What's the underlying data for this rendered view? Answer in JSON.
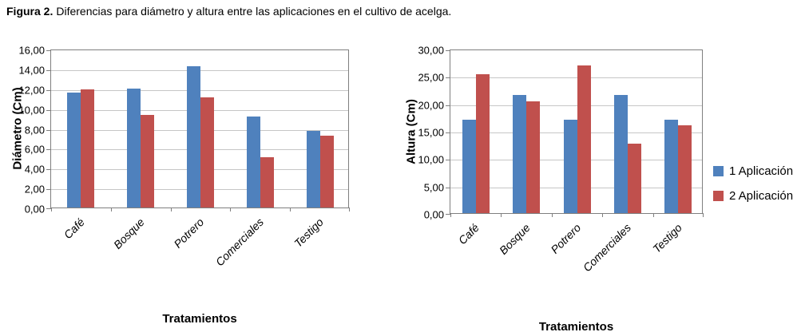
{
  "caption": {
    "label": "Figura 2.",
    "text": "Diferencias para diámetro y altura entre las aplicaciones en el cultivo de acelga."
  },
  "colors": {
    "series1": "#4F81BD",
    "series2": "#C0504D",
    "gridline": "#C6C6C6",
    "axis": "#7F7F7F"
  },
  "legend": {
    "position": "right",
    "items": [
      {
        "label": "1 Aplicación",
        "color": "#4F81BD"
      },
      {
        "label": "2 Aplicación",
        "color": "#C0504D"
      }
    ]
  },
  "chart_data": [
    {
      "type": "bar",
      "title": "",
      "ylabel": "Diámetro (Cm)",
      "xlabel": "Tratamientos",
      "categories": [
        "Café",
        "Bosque",
        "Potrero",
        "Comerciales",
        "Testigo"
      ],
      "series": [
        {
          "name": "1 Aplicación",
          "values": [
            11.6,
            12.0,
            14.2,
            9.2,
            7.7
          ]
        },
        {
          "name": "2 Aplicación",
          "values": [
            11.9,
            9.3,
            11.1,
            5.1,
            7.2
          ]
        }
      ],
      "ylim": [
        0,
        16
      ],
      "ytick_step": 2,
      "ytick_labels": [
        "0,00",
        "2,00",
        "4,00",
        "6,00",
        "8,00",
        "10,00",
        "12,00",
        "14,00",
        "16,00"
      ],
      "grid": true,
      "legend_position": "none"
    },
    {
      "type": "bar",
      "title": "",
      "ylabel": "Altura (Cm)",
      "xlabel": "Tratamientos",
      "categories": [
        "Café",
        "Bosque",
        "Potrero",
        "Comerciales",
        "Testigo"
      ],
      "series": [
        {
          "name": "1 Aplicación",
          "values": [
            17.0,
            21.5,
            17.0,
            21.5,
            17.0
          ]
        },
        {
          "name": "2 Aplicación",
          "values": [
            25.3,
            20.4,
            26.9,
            12.6,
            16.0
          ]
        }
      ],
      "ylim": [
        0,
        30
      ],
      "ytick_step": 5,
      "ytick_labels": [
        "0,00",
        "5,00",
        "10,00",
        "15,00",
        "20,00",
        "25,00",
        "30,00"
      ],
      "grid": true,
      "legend_position": "right"
    }
  ]
}
